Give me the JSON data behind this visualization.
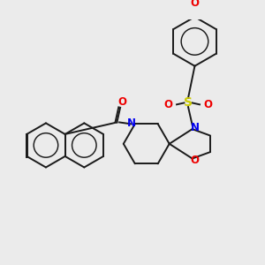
{
  "background_color": "#ebebeb",
  "bond_color": "#1a1a1a",
  "atom_colors": {
    "N": "#0000ee",
    "O": "#ee0000",
    "S": "#cccc00",
    "C": "#1a1a1a"
  },
  "figsize": [
    3.0,
    3.0
  ],
  "dpi": 100
}
